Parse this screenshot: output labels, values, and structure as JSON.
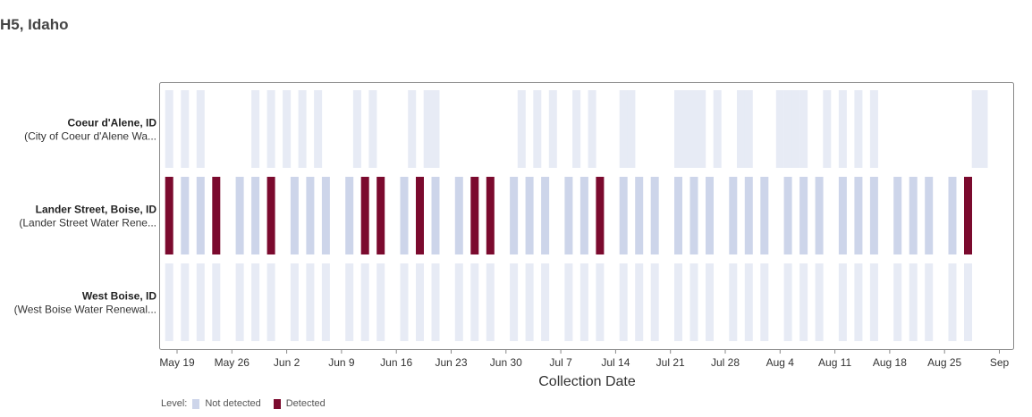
{
  "title": "H5, Idaho",
  "colors": {
    "not_detected": "#cdd5ea",
    "detected": "#7b0a2e",
    "pale": "#e7ebf5",
    "frame": "#888888"
  },
  "chart_data": {
    "type": "timeline",
    "title": "H5, Idaho",
    "xlabel": "Collection Date",
    "ylabel": "",
    "x_ticks": [
      "May 19",
      "May 26",
      "Jun 2",
      "Jun 9",
      "Jun 16",
      "Jun 23",
      "Jun 30",
      "Jul 7",
      "Jul 14",
      "Jul 21",
      "Jul 28",
      "Aug 4",
      "Aug 11",
      "Aug 18",
      "Aug 25",
      "Sep"
    ],
    "x_range": [
      "May 18",
      "Sep 1"
    ],
    "legend": {
      "title": "Level:",
      "items": [
        {
          "label": "Not detected",
          "color": "#cdd5ea"
        },
        {
          "label": "Detected",
          "color": "#7b0a2e"
        }
      ]
    },
    "sites": [
      {
        "name": "Coeur d'Alene, ID",
        "subtitle": "(City of Coeur d'Alene Wa...",
        "samples": [
          {
            "date": "May 18",
            "level": "Not detected"
          },
          {
            "date": "May 20",
            "level": "Not detected"
          },
          {
            "date": "May 22",
            "level": "Not detected"
          },
          {
            "date": "May 29",
            "level": "Not detected"
          },
          {
            "date": "May 31",
            "level": "Not detected"
          },
          {
            "date": "Jun 2",
            "level": "Not detected"
          },
          {
            "date": "Jun 4",
            "level": "Not detected"
          },
          {
            "date": "Jun 6",
            "level": "Not detected"
          },
          {
            "date": "Jun 11",
            "level": "Not detected"
          },
          {
            "date": "Jun 13",
            "level": "Not detected"
          },
          {
            "date": "Jun 18",
            "level": "Not detected"
          },
          {
            "date": "Jun 20",
            "level": "Not detected"
          },
          {
            "date": "Jun 21",
            "level": "Not detected"
          },
          {
            "date": "Jul 2",
            "level": "Not detected"
          },
          {
            "date": "Jul 4",
            "level": "Not detected"
          },
          {
            "date": "Jul 6",
            "level": "Not detected"
          },
          {
            "date": "Jul 9",
            "level": "Not detected"
          },
          {
            "date": "Jul 11",
            "level": "Not detected"
          },
          {
            "date": "Jul 15",
            "level": "Not detected"
          },
          {
            "date": "Jul 16",
            "level": "Not detected"
          },
          {
            "date": "Jul 22",
            "level": "Not detected"
          },
          {
            "date": "Jul 23",
            "level": "Not detected"
          },
          {
            "date": "Jul 24",
            "level": "Not detected"
          },
          {
            "date": "Jul 25",
            "level": "Not detected"
          },
          {
            "date": "Jul 27",
            "level": "Not detected"
          },
          {
            "date": "Jul 30",
            "level": "Not detected"
          },
          {
            "date": "Jul 31",
            "level": "Not detected"
          },
          {
            "date": "Aug 4",
            "level": "Not detected"
          },
          {
            "date": "Aug 5",
            "level": "Not detected"
          },
          {
            "date": "Aug 6",
            "level": "Not detected"
          },
          {
            "date": "Aug 7",
            "level": "Not detected"
          },
          {
            "date": "Aug 10",
            "level": "Not detected"
          },
          {
            "date": "Aug 12",
            "level": "Not detected"
          },
          {
            "date": "Aug 14",
            "level": "Not detected"
          },
          {
            "date": "Aug 16",
            "level": "Not detected"
          },
          {
            "date": "Aug 29",
            "level": "Not detected"
          },
          {
            "date": "Aug 30",
            "level": "Not detected"
          }
        ]
      },
      {
        "name": "Lander Street, Boise, ID",
        "subtitle": "(Lander Street Water Rene...",
        "samples": [
          {
            "date": "May 18",
            "level": "Detected"
          },
          {
            "date": "May 20",
            "level": "Not detected"
          },
          {
            "date": "May 22",
            "level": "Not detected"
          },
          {
            "date": "May 24",
            "level": "Detected"
          },
          {
            "date": "May 27",
            "level": "Not detected"
          },
          {
            "date": "May 29",
            "level": "Not detected"
          },
          {
            "date": "May 31",
            "level": "Detected"
          },
          {
            "date": "Jun 3",
            "level": "Not detected"
          },
          {
            "date": "Jun 5",
            "level": "Not detected"
          },
          {
            "date": "Jun 7",
            "level": "Not detected"
          },
          {
            "date": "Jun 10",
            "level": "Not detected"
          },
          {
            "date": "Jun 12",
            "level": "Detected"
          },
          {
            "date": "Jun 14",
            "level": "Detected"
          },
          {
            "date": "Jun 17",
            "level": "Not detected"
          },
          {
            "date": "Jun 19",
            "level": "Detected"
          },
          {
            "date": "Jun 21",
            "level": "Not detected"
          },
          {
            "date": "Jun 24",
            "level": "Not detected"
          },
          {
            "date": "Jun 26",
            "level": "Detected"
          },
          {
            "date": "Jun 28",
            "level": "Detected"
          },
          {
            "date": "Jul 1",
            "level": "Not detected"
          },
          {
            "date": "Jul 3",
            "level": "Not detected"
          },
          {
            "date": "Jul 5",
            "level": "Not detected"
          },
          {
            "date": "Jul 8",
            "level": "Not detected"
          },
          {
            "date": "Jul 10",
            "level": "Not detected"
          },
          {
            "date": "Jul 12",
            "level": "Detected"
          },
          {
            "date": "Jul 15",
            "level": "Not detected"
          },
          {
            "date": "Jul 17",
            "level": "Not detected"
          },
          {
            "date": "Jul 19",
            "level": "Not detected"
          },
          {
            "date": "Jul 22",
            "level": "Not detected"
          },
          {
            "date": "Jul 24",
            "level": "Not detected"
          },
          {
            "date": "Jul 26",
            "level": "Not detected"
          },
          {
            "date": "Jul 29",
            "level": "Not detected"
          },
          {
            "date": "Jul 31",
            "level": "Not detected"
          },
          {
            "date": "Aug 2",
            "level": "Not detected"
          },
          {
            "date": "Aug 5",
            "level": "Not detected"
          },
          {
            "date": "Aug 7",
            "level": "Not detected"
          },
          {
            "date": "Aug 9",
            "level": "Not detected"
          },
          {
            "date": "Aug 12",
            "level": "Not detected"
          },
          {
            "date": "Aug 14",
            "level": "Not detected"
          },
          {
            "date": "Aug 16",
            "level": "Not detected"
          },
          {
            "date": "Aug 19",
            "level": "Not detected"
          },
          {
            "date": "Aug 21",
            "level": "Not detected"
          },
          {
            "date": "Aug 23",
            "level": "Not detected"
          },
          {
            "date": "Aug 26",
            "level": "Not detected"
          },
          {
            "date": "Aug 28",
            "level": "Detected"
          }
        ]
      },
      {
        "name": "West Boise, ID",
        "subtitle": "(West Boise Water Renewal...",
        "samples": [
          {
            "date": "May 18",
            "level": "Not detected"
          },
          {
            "date": "May 20",
            "level": "Not detected"
          },
          {
            "date": "May 22",
            "level": "Not detected"
          },
          {
            "date": "May 24",
            "level": "Not detected"
          },
          {
            "date": "May 27",
            "level": "Not detected"
          },
          {
            "date": "May 29",
            "level": "Not detected"
          },
          {
            "date": "May 31",
            "level": "Not detected"
          },
          {
            "date": "Jun 3",
            "level": "Not detected"
          },
          {
            "date": "Jun 5",
            "level": "Not detected"
          },
          {
            "date": "Jun 7",
            "level": "Not detected"
          },
          {
            "date": "Jun 10",
            "level": "Not detected"
          },
          {
            "date": "Jun 12",
            "level": "Not detected"
          },
          {
            "date": "Jun 14",
            "level": "Not detected"
          },
          {
            "date": "Jun 17",
            "level": "Not detected"
          },
          {
            "date": "Jun 19",
            "level": "Not detected"
          },
          {
            "date": "Jun 21",
            "level": "Not detected"
          },
          {
            "date": "Jun 24",
            "level": "Not detected"
          },
          {
            "date": "Jun 26",
            "level": "Not detected"
          },
          {
            "date": "Jun 28",
            "level": "Not detected"
          },
          {
            "date": "Jul 1",
            "level": "Not detected"
          },
          {
            "date": "Jul 3",
            "level": "Not detected"
          },
          {
            "date": "Jul 5",
            "level": "Not detected"
          },
          {
            "date": "Jul 8",
            "level": "Not detected"
          },
          {
            "date": "Jul 10",
            "level": "Not detected"
          },
          {
            "date": "Jul 12",
            "level": "Not detected"
          },
          {
            "date": "Jul 15",
            "level": "Not detected"
          },
          {
            "date": "Jul 17",
            "level": "Not detected"
          },
          {
            "date": "Jul 19",
            "level": "Not detected"
          },
          {
            "date": "Jul 22",
            "level": "Not detected"
          },
          {
            "date": "Jul 24",
            "level": "Not detected"
          },
          {
            "date": "Jul 26",
            "level": "Not detected"
          },
          {
            "date": "Jul 29",
            "level": "Not detected"
          },
          {
            "date": "Jul 31",
            "level": "Not detected"
          },
          {
            "date": "Aug 2",
            "level": "Not detected"
          },
          {
            "date": "Aug 5",
            "level": "Not detected"
          },
          {
            "date": "Aug 7",
            "level": "Not detected"
          },
          {
            "date": "Aug 9",
            "level": "Not detected"
          },
          {
            "date": "Aug 12",
            "level": "Not detected"
          },
          {
            "date": "Aug 14",
            "level": "Not detected"
          },
          {
            "date": "Aug 16",
            "level": "Not detected"
          },
          {
            "date": "Aug 19",
            "level": "Not detected"
          },
          {
            "date": "Aug 21",
            "level": "Not detected"
          },
          {
            "date": "Aug 23",
            "level": "Not detected"
          },
          {
            "date": "Aug 26",
            "level": "Not detected"
          },
          {
            "date": "Aug 28",
            "level": "Not detected"
          }
        ]
      }
    ]
  }
}
